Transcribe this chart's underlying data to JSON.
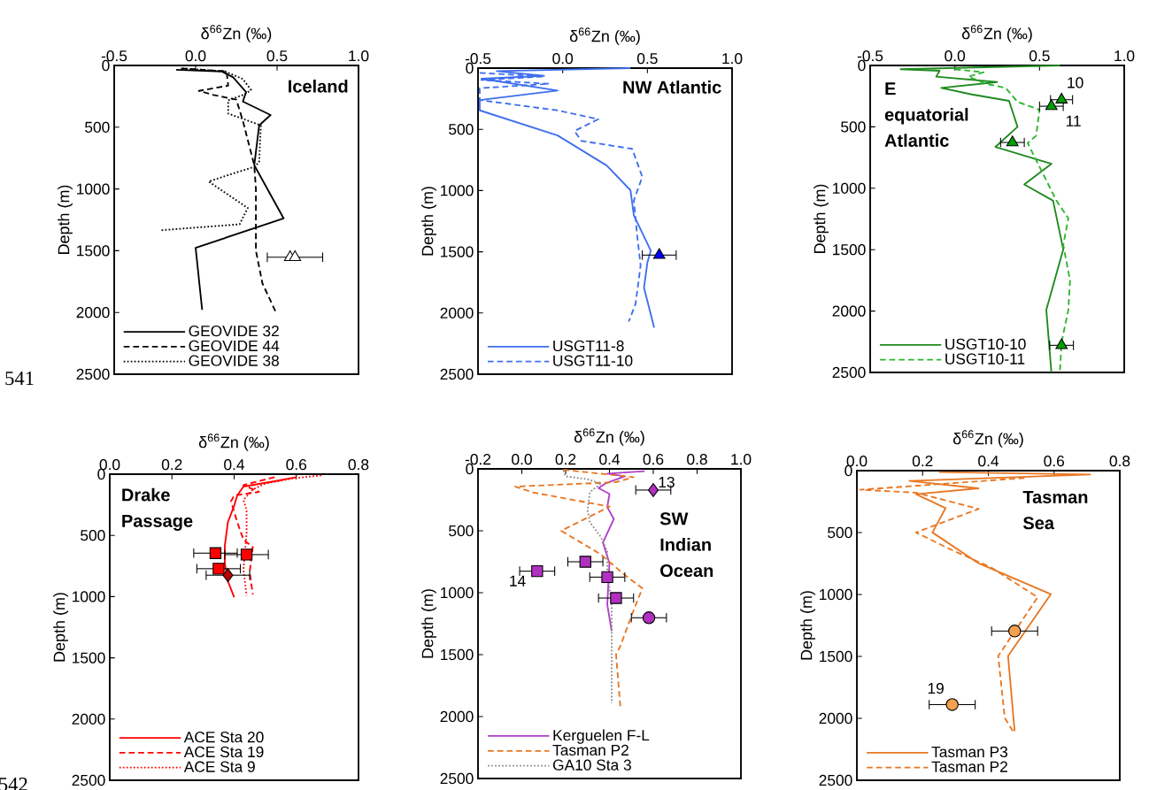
{
  "chart_data": [
    {
      "type": "line",
      "title": "Iceland",
      "xlabel": "δ$^{66}$Zn (‰)",
      "ylabel": "Depth (m)",
      "xlim": [
        -0.5,
        1.0
      ],
      "xticks": [
        {
          "value": -0.5,
          "label": "-0.5"
        },
        {
          "value": 0,
          "label": "0.0"
        },
        {
          "value": 0.5,
          "label": "0.5"
        },
        {
          "value": 1,
          "label": "1.0"
        }
      ],
      "ylim": [
        2500,
        0
      ],
      "yticks": [
        0,
        500,
        1000,
        1500,
        2000,
        2500
      ],
      "legend": "bottom left",
      "series": [
        {
          "name": "GEOVIDE 32",
          "color": "#000000",
          "line_style": "solid",
          "x": [
            -0.12,
            0.16,
            0.23,
            0.31,
            0.29,
            0.46,
            0.39,
            0.36,
            0.54,
            0.0,
            0.04
          ],
          "values": [
            35,
            48,
            96,
            215,
            292,
            401,
            485,
            808,
            1238,
            1477,
            1979
          ]
        },
        {
          "name": "GEOVIDE 44",
          "color": "#000000",
          "line_style": "dashed",
          "x": [
            -0.09,
            0.19,
            0.2,
            0.02,
            0.11,
            0.25,
            0.29,
            0.36,
            0.37,
            0.37,
            0.41,
            0.49
          ],
          "values": [
            24,
            48,
            163,
            206,
            239,
            277,
            449,
            808,
            1000,
            1500,
            1764,
            1991
          ]
        },
        {
          "name": "GEOVIDE 38",
          "color": "#000000",
          "line_style": "dotted",
          "x": [
            -0.08,
            0.18,
            0.29,
            0.34,
            0.3,
            0.2,
            0.2,
            0.25,
            0.4,
            0.39,
            0.36,
            0.08,
            0.32,
            0.27,
            -0.21
          ],
          "values": [
            24,
            48,
            110,
            198,
            234,
            282,
            390,
            413,
            485,
            784,
            820,
            939,
            1154,
            1286,
            1334
          ]
        },
        {
          "type": "scatter",
          "marker": "triangle",
          "color": "#ffffff",
          "x": [
            0.58,
            0.61
          ],
          "values": [
            1553,
            1553
          ],
          "xerrors": [
            null,
            0.17
          ]
        }
      ],
      "annotations": [
        "541"
      ]
    },
    {
      "type": "line",
      "title": "NW Atlantic",
      "xlabel": "δ$^{66}$Zn (‰)",
      "ylabel": "Depth (m)",
      "xlim": [
        -0.5,
        1.0
      ],
      "xticks": [
        {
          "value": -0.5,
          "label": "-0.5"
        },
        {
          "value": 0,
          "label": "0.0"
        },
        {
          "value": 0.5,
          "label": "0.5"
        },
        {
          "value": 1,
          "label": "1.0"
        }
      ],
      "ylim": [
        2500,
        0
      ],
      "yticks": [
        0,
        500,
        1000,
        1500,
        2000,
        2500
      ],
      "legend": "bottom left",
      "series": [
        {
          "name": "USGT11-8",
          "color": "#3f6fee",
          "line_style": "solid",
          "x": [
            0.4,
            -0.39,
            -0.11,
            -0.48,
            -0.03,
            -0.49,
            -0.49,
            -0.03,
            0.26,
            0.4,
            0.42,
            0.52,
            0.5,
            0.48,
            0.54
          ],
          "values": [
            0,
            24,
            63,
            87,
            183,
            261,
            345,
            550,
            796,
            997,
            1202,
            1491,
            1588,
            1793,
            2119
          ]
        },
        {
          "name": "USGT11-10",
          "color": "#3f6fee",
          "line_style": "dashed",
          "x": [
            -0.49,
            -0.11,
            -0.48,
            -0.08,
            -0.49,
            -0.49,
            -0.03,
            0.21,
            0.07,
            0.11,
            0.41,
            0.47,
            0.42,
            0.44,
            0.46,
            0.43,
            0.39
          ],
          "values": [
            39,
            68,
            97,
            128,
            164,
            261,
            345,
            417,
            514,
            594,
            659,
            888,
            1081,
            1371,
            1612,
            1926,
            2070
          ]
        },
        {
          "type": "scatter",
          "marker": "triangle",
          "color": "#0000ff",
          "x": [
            0.57
          ],
          "values": [
            1527
          ],
          "xerrors": [
            0.1
          ]
        }
      ]
    },
    {
      "type": "line",
      "title": "E equatorial Atlantic",
      "xlabel": "δ$^{66}$Zn (‰)",
      "ylabel": "Depth (m)",
      "xlim": [
        -0.5,
        1.0
      ],
      "xticks": [
        {
          "value": -0.5,
          "label": "-0.5"
        },
        {
          "value": 0,
          "label": "0.0"
        },
        {
          "value": 0.5,
          "label": "0.5"
        },
        {
          "value": 1,
          "label": "1.0"
        }
      ],
      "ylim": [
        2500,
        0
      ],
      "yticks": [
        0,
        500,
        1000,
        1500,
        2000,
        2500
      ],
      "legend": "bottom left",
      "series": [
        {
          "name": "USGT10-10",
          "color": "#1f8a1f",
          "line_style": "solid",
          "x": [
            0.62,
            -0.32,
            -0.09,
            -0.11,
            0.25,
            -0.08,
            0.1,
            0.32,
            0.37,
            0.24,
            0.57,
            0.41,
            0.58,
            0.64,
            0.54,
            0.57
          ],
          "values": [
            0,
            31,
            43,
            91,
            135,
            183,
            236,
            288,
            500,
            663,
            801,
            969,
            1101,
            1498,
            1991,
            2500
          ]
        },
        {
          "name": "USGT10-11",
          "color": "#2db52d",
          "line_style": "dashed",
          "x": [
            0.0,
            0.17,
            0.08,
            0.19,
            0.3,
            0.37,
            0.5,
            0.48,
            0.43,
            0.53,
            0.6,
            0.67,
            0.64,
            0.68,
            0.67,
            0.63,
            0.62
          ],
          "values": [
            31,
            55,
            91,
            151,
            183,
            296,
            361,
            572,
            632,
            909,
            1101,
            1245,
            1462,
            1750,
            1991,
            2255,
            2500
          ]
        },
        {
          "type": "scatter",
          "marker": "triangle",
          "color": "#00a000",
          "x": [
            0.63,
            0.57,
            0.34,
            0.63
          ],
          "values": [
            279,
            332,
            627,
            2279
          ],
          "xerrors": [
            0.065,
            0.07,
            0.07,
            0.07
          ]
        }
      ],
      "annotations": [
        "10",
        "11"
      ]
    },
    {
      "type": "line",
      "title": "Drake Passage",
      "xlabel": "δ$^{66}$Zn (‰)",
      "ylabel": "Depth (m)",
      "xlim": [
        0,
        0.8
      ],
      "xticks": [
        {
          "value": 0,
          "label": "0.0"
        },
        {
          "value": 0.2,
          "label": "0.2"
        },
        {
          "value": 0.4,
          "label": "0.4"
        },
        {
          "value": 0.6,
          "label": "0.6"
        },
        {
          "value": 0.8,
          "label": "0.8"
        }
      ],
      "ylim": [
        2500,
        0
      ],
      "yticks": [
        0,
        500,
        1000,
        1500,
        2000,
        2500
      ],
      "legend": "bottom left",
      "series": [
        {
          "name": "ACE Sta 20",
          "color": "#ff0000",
          "line_style": "solid",
          "x": [
            0.6,
            0.53,
            0.43,
            0.41,
            0.4,
            0.38,
            0.37,
            0.37,
            0.38,
            0.4
          ],
          "values": [
            24,
            58,
            101,
            174,
            258,
            391,
            583,
            728,
            873,
            1005
          ]
        },
        {
          "name": "ACE Sta 19",
          "color": "#ff0000",
          "line_style": "dashed",
          "x": [
            0.53,
            0.43,
            0.48,
            0.4,
            0.39,
            0.41,
            0.43,
            0.46,
            0.45,
            0.46
          ],
          "values": [
            24,
            89,
            145,
            174,
            222,
            391,
            535,
            596,
            800,
            981
          ]
        },
        {
          "name": "ACE Sta 9",
          "color": "#ff0000",
          "line_style": "dotted",
          "x": [
            0.68,
            0.59,
            0.5,
            0.46,
            0.43,
            0.44,
            0.44,
            0.43,
            0.44
          ],
          "values": [
            10,
            34,
            77,
            125,
            210,
            294,
            487,
            776,
            993
          ]
        },
        {
          "type": "scatter",
          "marker": "diamond",
          "color": "#c00000",
          "x": [
            0.38
          ],
          "values": [
            825
          ],
          "xerrors": [
            0.07
          ]
        },
        {
          "type": "scatter",
          "marker": "square",
          "color": "#ff0000",
          "x": [
            0.34,
            0.44,
            0.35
          ],
          "values": [
            645,
            657,
            772
          ],
          "xerrors": [
            0.07,
            0.07,
            0.07
          ]
        }
      ],
      "annotations": [
        "542"
      ]
    },
    {
      "type": "line",
      "title": "SW Indian Ocean",
      "xlabel": "δ$^{66}$Zn (‰)",
      "ylabel": "Depth (m)",
      "xlim": [
        -0.2,
        1.0
      ],
      "xticks": [
        {
          "value": -0.2,
          "label": "-0.2"
        },
        {
          "value": 0,
          "label": "0.0"
        },
        {
          "value": 0.2,
          "label": "0.2"
        },
        {
          "value": 0.4,
          "label": "0.4"
        },
        {
          "value": 0.6,
          "label": "0.6"
        },
        {
          "value": 0.8,
          "label": "0.8"
        },
        {
          "value": 1,
          "label": "1.0"
        }
      ],
      "ylim": [
        2500,
        0
      ],
      "yticks": [
        0,
        500,
        1000,
        1500,
        2000,
        2500
      ],
      "legend": "bottom left",
      "series": [
        {
          "name": "Kerguelen F-L",
          "color": "#b03ec8",
          "line_style": "solid",
          "x": [
            0.56,
            0.39,
            0.47,
            0.38,
            0.35,
            0.4,
            0.39,
            0.42,
            0.37,
            0.4,
            0.39,
            0.41
          ],
          "values": [
            19,
            38,
            60,
            119,
            155,
            202,
            310,
            405,
            595,
            762,
            1095,
            1310
          ]
        },
        {
          "name": "Tasman P2",
          "color": "#e87722",
          "line_style": "dashed",
          "x": [
            0.19,
            0.51,
            0.43,
            -0.03,
            0.05,
            0.4,
            0.18,
            0.36,
            0.47,
            0.55,
            0.51,
            0.45,
            0.43,
            0.45
          ],
          "values": [
            7,
            67,
            107,
            143,
            190,
            305,
            500,
            690,
            857,
            964,
            1143,
            1429,
            1500,
            1929
          ]
        },
        {
          "name": "GA10 Sta 3",
          "color": "#888888",
          "line_style": "dotted",
          "x": [
            0.19,
            0.2,
            0.3,
            0.36,
            0.31,
            0.3,
            0.31,
            0.36,
            0.39,
            0.39,
            0.41,
            0.41
          ],
          "values": [
            12,
            60,
            83,
            119,
            190,
            333,
            429,
            548,
            667,
            833,
            1095,
            1893
          ]
        },
        {
          "type": "scatter",
          "marker": "square",
          "color": "#b030c0",
          "x": [
            0.29,
            0.07,
            0.39,
            0.43
          ],
          "values": [
            750,
            826,
            874,
            1043
          ],
          "xerrors": [
            0.08,
            0.08,
            0.08,
            0.08
          ]
        },
        {
          "type": "scatter",
          "marker": "diamond",
          "color": "#b030c0",
          "x": [
            0.6
          ],
          "values": [
            171
          ],
          "xerrors": [
            0.08
          ]
        },
        {
          "type": "scatter",
          "marker": "circle",
          "color": "#b030c0",
          "x": [
            0.58
          ],
          "values": [
            1202
          ],
          "xerrors": [
            0.08
          ]
        }
      ],
      "annotations": [
        "13",
        "14"
      ]
    },
    {
      "type": "line",
      "title": "Tasman Sea",
      "xlabel": "δ$^{66}$Zn (‰)",
      "ylabel": "Depth (m)",
      "xlim": [
        0,
        0.8
      ],
      "xticks": [
        {
          "value": 0,
          "label": "0.0"
        },
        {
          "value": 0.2,
          "label": "0.2"
        },
        {
          "value": 0.4,
          "label": "0.4"
        },
        {
          "value": 0.6,
          "label": "0.6"
        },
        {
          "value": 0.8,
          "label": "0.8"
        }
      ],
      "ylim": [
        2500,
        0
      ],
      "yticks": [
        0,
        500,
        1000,
        1500,
        2000,
        2500
      ],
      "legend": "bottom left",
      "series": [
        {
          "name": "Tasman P3",
          "color": "#e87722",
          "line_style": "solid",
          "x": [
            0.25,
            0.71,
            0.16,
            0.37,
            0.18,
            0.27,
            0.23,
            0.37,
            0.59,
            0.46,
            0.48
          ],
          "values": [
            12,
            31,
            83,
            143,
            190,
            302,
            499,
            748,
            998,
            1497,
            2103
          ]
        },
        {
          "name": "Tasman P2",
          "color": "#e87722",
          "line_style": "dashed",
          "x": [
            0.51,
            0.16,
            0.01,
            0.18,
            0.37,
            0.18,
            0.28,
            0.41,
            0.55,
            0.43,
            0.45,
            0.48
          ],
          "values": [
            59,
            126,
            154,
            178,
            309,
            499,
            630,
            784,
            1022,
            1497,
            1996,
            2127
          ]
        },
        {
          "type": "scatter",
          "marker": "circle",
          "color": "#f4a04e",
          "x": [
            0.48,
            0.29
          ],
          "values": [
            1295,
            1889
          ],
          "xerrors": [
            0.07,
            0.07
          ]
        }
      ],
      "annotations": [
        "19"
      ]
    }
  ]
}
